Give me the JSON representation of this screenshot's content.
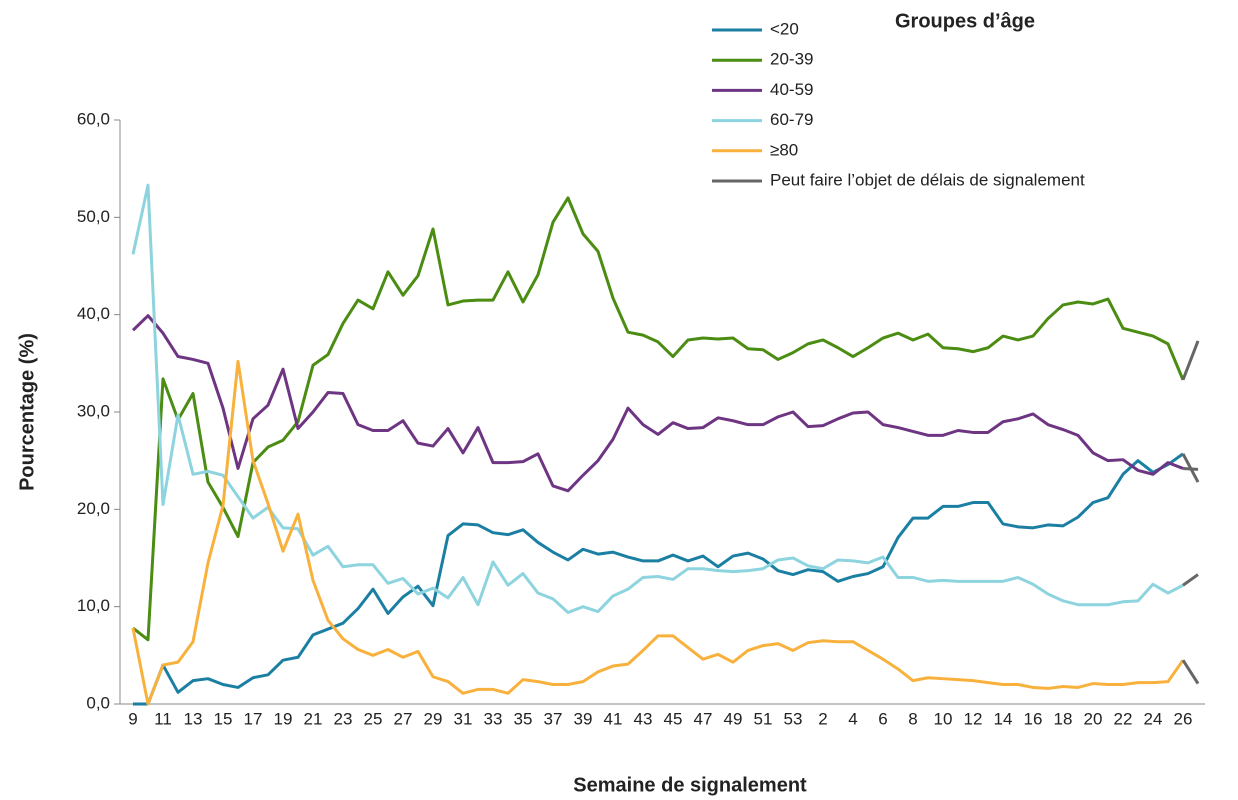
{
  "chart_data": {
    "type": "line",
    "title": "Groupes d’âge",
    "xlabel": "Semaine de signalement",
    "ylabel": "Pourcentage (%)",
    "categories": [
      "9",
      null,
      "11",
      null,
      "13",
      null,
      "15",
      null,
      "17",
      null,
      "19",
      null,
      "21",
      null,
      "23",
      null,
      "25",
      null,
      "27",
      null,
      "29",
      null,
      "31",
      null,
      "33",
      null,
      "35",
      null,
      "37",
      null,
      "39",
      null,
      "41",
      null,
      "43",
      null,
      "45",
      null,
      "47",
      null,
      "49",
      null,
      "51",
      null,
      "53",
      null,
      "2",
      null,
      "4",
      null,
      "6",
      null,
      "8",
      null,
      "10",
      null,
      "12",
      null,
      "14",
      null,
      "16",
      null,
      "18",
      null,
      "20",
      null,
      "22",
      null,
      "24",
      null,
      "26",
      null
    ],
    "ylim": [
      0,
      60
    ],
    "yticks": [
      {
        "value": 0,
        "label": "0,0"
      },
      {
        "value": 10,
        "label": "10,0"
      },
      {
        "value": 20,
        "label": "20,0"
      },
      {
        "value": 30,
        "label": "30,0"
      },
      {
        "value": 40,
        "label": "40,0"
      },
      {
        "value": 50,
        "label": "50,0"
      },
      {
        "value": 60,
        "label": "60,0"
      }
    ],
    "series": [
      {
        "name": "<20",
        "color": "#1b7fa3",
        "values": [
          0,
          0,
          4.0,
          1.2,
          2.4,
          2.6,
          2.0,
          1.7,
          2.7,
          3.0,
          4.5,
          4.8,
          7.1,
          7.7,
          8.3,
          9.8,
          11.8,
          9.3,
          11.0,
          12.1,
          10.1,
          17.3,
          18.5,
          18.4,
          17.6,
          17.4,
          17.9,
          16.6,
          15.6,
          14.8,
          15.9,
          15.4,
          15.6,
          15.1,
          14.7,
          14.7,
          15.3,
          14.7,
          15.2,
          14.1,
          15.2,
          15.5,
          14.9,
          13.7,
          13.3,
          13.8,
          13.6,
          12.6,
          13.1,
          13.4,
          14.1,
          17.1,
          19.1,
          19.1,
          20.3,
          20.3,
          20.7,
          20.7,
          18.5,
          18.2,
          18.1,
          18.4,
          18.3,
          19.2,
          20.7,
          21.2,
          23.6,
          25.0,
          23.8,
          24.6,
          25.7,
          22.8
        ]
      },
      {
        "name": "20-39",
        "color": "#4b8c12",
        "values": [
          7.8,
          6.6,
          33.4,
          29.2,
          31.9,
          22.8,
          20.2,
          17.2,
          24.8,
          26.4,
          27.1,
          29.0,
          34.8,
          35.9,
          39.1,
          41.5,
          40.6,
          44.4,
          42.0,
          44.0,
          48.8,
          41.0,
          41.4,
          41.5,
          41.5,
          44.4,
          41.3,
          44.1,
          49.5,
          52.0,
          48.3,
          46.5,
          41.7,
          38.2,
          37.9,
          37.2,
          35.7,
          37.4,
          37.6,
          37.5,
          37.6,
          36.5,
          36.4,
          35.4,
          36.1,
          37.0,
          37.4,
          36.6,
          35.7,
          36.6,
          37.6,
          38.1,
          37.4,
          38.0,
          36.6,
          36.5,
          36.2,
          36.6,
          37.8,
          37.4,
          37.8,
          39.6,
          41.0,
          41.3,
          41.1,
          41.6,
          38.6,
          38.2,
          37.8,
          37.0,
          33.3,
          37.3
        ]
      },
      {
        "name": "40-59",
        "color": "#6e3583",
        "values": [
          38.4,
          39.9,
          38.1,
          35.7,
          35.4,
          35.0,
          30.4,
          24.2,
          29.3,
          30.7,
          34.4,
          28.3,
          30.0,
          32.0,
          31.9,
          28.7,
          28.1,
          28.1,
          29.1,
          26.8,
          26.5,
          28.3,
          25.8,
          28.4,
          24.8,
          24.8,
          24.9,
          25.7,
          22.4,
          21.9,
          23.5,
          25.0,
          27.2,
          30.4,
          28.7,
          27.7,
          28.9,
          28.3,
          28.4,
          29.4,
          29.1,
          28.7,
          28.7,
          29.5,
          30.0,
          28.5,
          28.6,
          29.3,
          29.9,
          30.0,
          28.7,
          28.4,
          28.0,
          27.6,
          27.6,
          28.1,
          27.9,
          27.9,
          29.0,
          29.3,
          29.8,
          28.7,
          28.2,
          27.6,
          25.8,
          25.0,
          25.1,
          24.0,
          23.6,
          24.8,
          24.2,
          24.1
        ]
      },
      {
        "name": "60-79",
        "color": "#8dd4df",
        "values": [
          46.2,
          53.3,
          20.5,
          29.7,
          23.6,
          23.9,
          23.5,
          21.3,
          19.1,
          20.2,
          18.1,
          18.0,
          15.3,
          16.2,
          14.1,
          14.3,
          14.3,
          12.4,
          12.9,
          11.3,
          11.9,
          10.9,
          13.0,
          10.2,
          14.6,
          12.2,
          13.4,
          11.4,
          10.8,
          9.4,
          10.0,
          9.5,
          11.1,
          11.8,
          13.0,
          13.1,
          12.8,
          13.9,
          13.9,
          13.7,
          13.6,
          13.7,
          13.9,
          14.8,
          15.0,
          14.2,
          13.9,
          14.8,
          14.7,
          14.5,
          15.1,
          13.0,
          13.0,
          12.6,
          12.7,
          12.6,
          12.6,
          12.6,
          12.6,
          13.0,
          12.3,
          11.3,
          10.6,
          10.2,
          10.2,
          10.2,
          10.5,
          10.6,
          12.3,
          11.4,
          12.2,
          13.3
        ]
      },
      {
        "name": "≥80",
        "color": "#f8b13c",
        "values": [
          7.8,
          0,
          4.0,
          4.3,
          6.4,
          14.5,
          20.4,
          35.2,
          25.0,
          20.6,
          15.7,
          19.5,
          12.7,
          8.6,
          6.7,
          5.6,
          5.0,
          5.6,
          4.8,
          5.4,
          2.8,
          2.3,
          1.1,
          1.5,
          1.5,
          1.1,
          2.5,
          2.3,
          2.0,
          2.0,
          2.3,
          3.3,
          3.9,
          4.1,
          5.5,
          7.0,
          7.0,
          5.8,
          4.6,
          5.1,
          4.3,
          5.5,
          6.0,
          6.2,
          5.5,
          6.3,
          6.5,
          6.4,
          6.4,
          5.5,
          4.6,
          3.6,
          2.4,
          2.7,
          2.6,
          2.5,
          2.4,
          2.2,
          2.0,
          2.0,
          1.7,
          1.6,
          1.8,
          1.7,
          2.1,
          2.0,
          2.0,
          2.2,
          2.2,
          2.3,
          4.5,
          2.1
        ]
      }
    ],
    "delay": {
      "name": "Peut faire l’objet de délais de signalement",
      "color": "#666666",
      "start": 70
    }
  }
}
